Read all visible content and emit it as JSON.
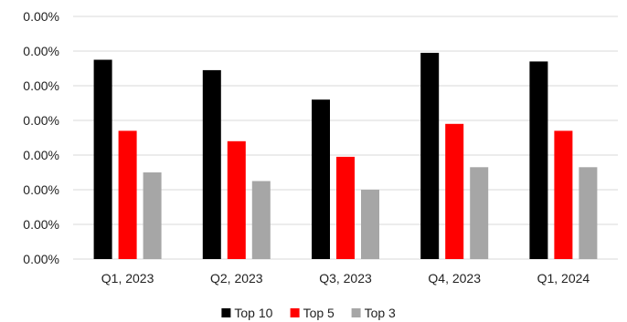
{
  "chart_data": {
    "type": "bar",
    "categories": [
      "Q1, 2023",
      "Q2, 2023",
      "Q3, 2023",
      "Q4, 2023",
      "Q1, 2024"
    ],
    "series": [
      {
        "name": "Top 10",
        "color": "#000000",
        "values": [
          5.75,
          5.45,
          4.6,
          5.95,
          5.7
        ]
      },
      {
        "name": "Top 5",
        "color": "#ff0000",
        "values": [
          3.7,
          3.4,
          2.95,
          3.9,
          3.7
        ]
      },
      {
        "name": "Top 3",
        "color": "#a6a6a6",
        "values": [
          2.5,
          2.25,
          2.0,
          2.65,
          2.65
        ]
      }
    ],
    "y_tick_labels": [
      "0.00%",
      "0.00%",
      "0.00%",
      "0.00%",
      "0.00%",
      "0.00%",
      "0.00%",
      "0.00%"
    ],
    "ylim": [
      0,
      7
    ],
    "title": "",
    "xlabel": "",
    "ylabel": "",
    "grid": "horizontal",
    "legend": "bottom-center"
  }
}
